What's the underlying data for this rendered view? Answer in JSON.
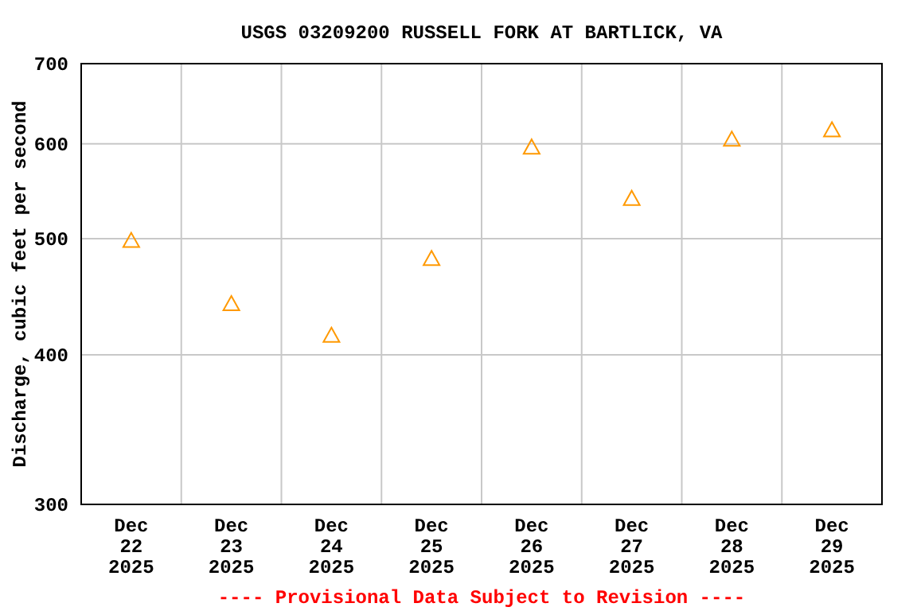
{
  "chart_data": {
    "type": "scatter",
    "title": "USGS 03209200 RUSSELL FORK AT BARTLICK, VA",
    "ylabel": "Discharge, cubic feet per second",
    "categories": [
      "Dec\n22\n2025",
      "Dec\n23\n2025",
      "Dec\n24\n2025",
      "Dec\n25\n2025",
      "Dec\n26\n2025",
      "Dec\n27\n2025",
      "Dec\n28\n2025",
      "Dec\n29\n2025"
    ],
    "series": [
      {
        "color": "#ff9900",
        "values": [
          498,
          441,
          415,
          481,
          596,
          540,
          605,
          616
        ]
      }
    ],
    "ylim": [
      300,
      700
    ],
    "yticks": [
      300,
      400,
      500,
      600,
      700
    ],
    "log": true,
    "grid": true,
    "marker": "triangle",
    "annotations": [
      "---- Provisional Data Subject to Revision ----"
    ]
  }
}
